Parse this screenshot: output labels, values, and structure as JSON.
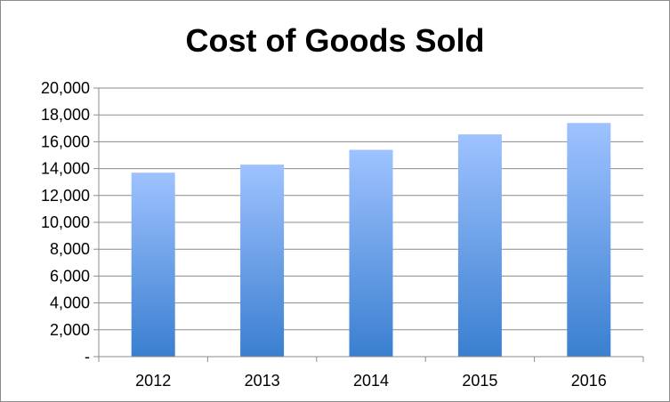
{
  "chart_data": {
    "type": "bar",
    "title": "Cost of Goods Sold",
    "xlabel": "",
    "ylabel": "",
    "categories": [
      "2012",
      "2013",
      "2014",
      "2015",
      "2016"
    ],
    "values": [
      13700,
      14300,
      15400,
      16550,
      17400
    ],
    "ylim": [
      0,
      20000
    ],
    "yticks": [
      0,
      2000,
      4000,
      6000,
      8000,
      10000,
      12000,
      14000,
      16000,
      18000,
      20000
    ],
    "ytick_labels": [
      "-",
      "2,000",
      "4,000",
      "6,000",
      "8,000",
      "10,000",
      "12,000",
      "14,000",
      "16,000",
      "18,000",
      "20,000"
    ],
    "grid": true,
    "legend": "none",
    "colors": {
      "bar_top": "#9ec2ff",
      "bar_bottom": "#3a7fd0",
      "grid": "#8c8c8c",
      "axis": "#8c8c8c"
    }
  }
}
